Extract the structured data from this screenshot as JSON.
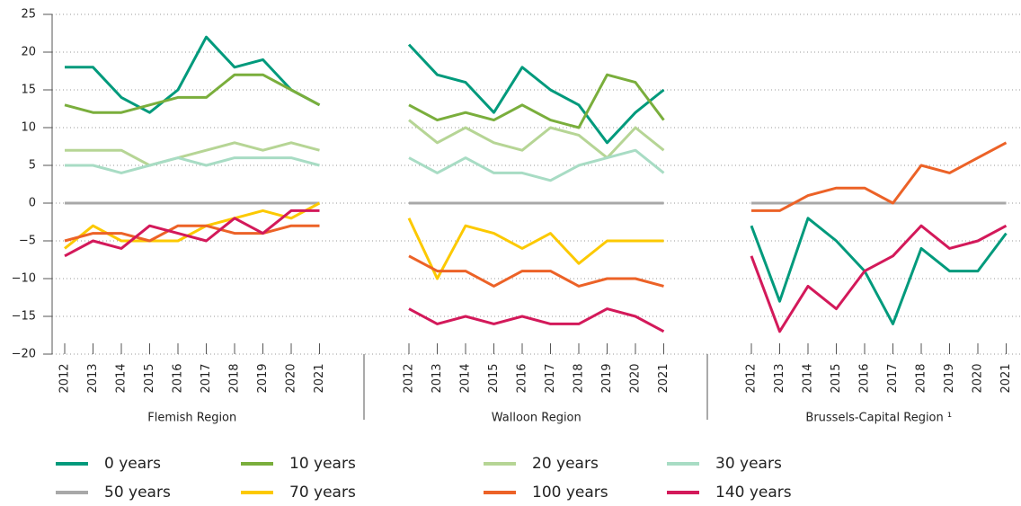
{
  "chart_data": {
    "type": "line",
    "ylim": [
      -20,
      25
    ],
    "yticks": [
      {
        "value": -20,
        "label": "−20"
      },
      {
        "value": -15,
        "label": "−15"
      },
      {
        "value": -10,
        "label": "−10"
      },
      {
        "value": -5,
        "label": "−5"
      },
      0,
      5,
      10,
      15,
      20,
      25
    ],
    "grid": true,
    "panels": [
      {
        "label": "Flemish Region",
        "categories": [
          "2012",
          "2013",
          "2014",
          "2015",
          "2016",
          "2017",
          "2018",
          "2019",
          "2020",
          "2021"
        ]
      },
      {
        "label": "Walloon Region",
        "categories": [
          "2012",
          "2013",
          "2014",
          "2015",
          "2016",
          "2017",
          "2018",
          "2019",
          "2020",
          "2021"
        ]
      },
      {
        "label": "Brussels-Capital Region ¹",
        "categories": [
          "2012",
          "2013",
          "2014",
          "2015",
          "2016",
          "2017",
          "2018",
          "2019",
          "2020",
          "2021"
        ]
      }
    ],
    "series": [
      {
        "name": "0 years",
        "color": "#009a7c",
        "values": [
          [
            18,
            18,
            14,
            12,
            15,
            22,
            18,
            19,
            15,
            13
          ],
          [
            21,
            17,
            16,
            12,
            18,
            15,
            13,
            8,
            12,
            15
          ],
          [
            -3,
            -13,
            -2,
            -5,
            -9,
            -16,
            -6,
            -9,
            -9,
            -4
          ]
        ]
      },
      {
        "name": "10 years",
        "color": "#7aae3c",
        "values": [
          [
            13,
            12,
            12,
            13,
            14,
            14,
            17,
            17,
            15,
            13
          ],
          [
            13,
            11,
            12,
            11,
            13,
            11,
            10,
            17,
            16,
            11
          ],
          [
            null,
            null,
            null,
            null,
            null,
            null,
            null,
            null,
            null,
            null
          ]
        ]
      },
      {
        "name": "20 years",
        "color": "#b6d595",
        "values": [
          [
            7,
            7,
            7,
            5,
            6,
            7,
            8,
            7,
            8,
            7
          ],
          [
            11,
            8,
            10,
            8,
            7,
            10,
            9,
            6,
            10,
            7
          ],
          [
            null,
            null,
            null,
            null,
            null,
            null,
            null,
            null,
            null,
            null
          ]
        ]
      },
      {
        "name": "30 years",
        "color": "#a8dcc4",
        "values": [
          [
            5,
            5,
            4,
            5,
            6,
            5,
            6,
            6,
            6,
            5
          ],
          [
            6,
            4,
            6,
            4,
            4,
            3,
            5,
            6,
            7,
            4
          ],
          [
            null,
            null,
            null,
            null,
            null,
            null,
            null,
            null,
            null,
            null
          ]
        ]
      },
      {
        "name": "50 years",
        "color": "#a8a8a8",
        "values": [
          [
            0,
            0,
            0,
            0,
            0,
            0,
            0,
            0,
            0,
            0
          ],
          [
            0,
            0,
            0,
            0,
            0,
            0,
            0,
            0,
            0,
            0
          ],
          [
            0,
            0,
            0,
            0,
            0,
            0,
            0,
            0,
            0,
            0
          ]
        ]
      },
      {
        "name": "70 years",
        "color": "#fcc900",
        "values": [
          [
            -6,
            -3,
            -5,
            -5,
            -5,
            -3,
            -2,
            -1,
            -2,
            0
          ],
          [
            -2,
            -10,
            -3,
            -4,
            -6,
            -4,
            -8,
            -5,
            -5,
            -5
          ],
          [
            null,
            null,
            null,
            null,
            null,
            null,
            null,
            null,
            null,
            null
          ]
        ]
      },
      {
        "name": "100 years",
        "color": "#ec6227",
        "values": [
          [
            -5,
            -4,
            -4,
            -5,
            -3,
            -3,
            -4,
            -4,
            -3,
            -3
          ],
          [
            -7,
            -9,
            -9,
            -11,
            -9,
            -9,
            -11,
            -10,
            -10,
            -11
          ],
          [
            -1,
            -1,
            1,
            2,
            2,
            0,
            5,
            4,
            6,
            8
          ]
        ]
      },
      {
        "name": "140 years",
        "color": "#d3195a",
        "values": [
          [
            -7,
            -5,
            -6,
            -3,
            -4,
            -5,
            -2,
            -4,
            -1,
            -1
          ],
          [
            -14,
            -16,
            -15,
            -16,
            -15,
            -16,
            -16,
            -14,
            -15,
            -17
          ],
          [
            -7,
            -17,
            -11,
            -14,
            -9,
            -7,
            -3,
            -6,
            -5,
            -3
          ]
        ]
      }
    ]
  }
}
